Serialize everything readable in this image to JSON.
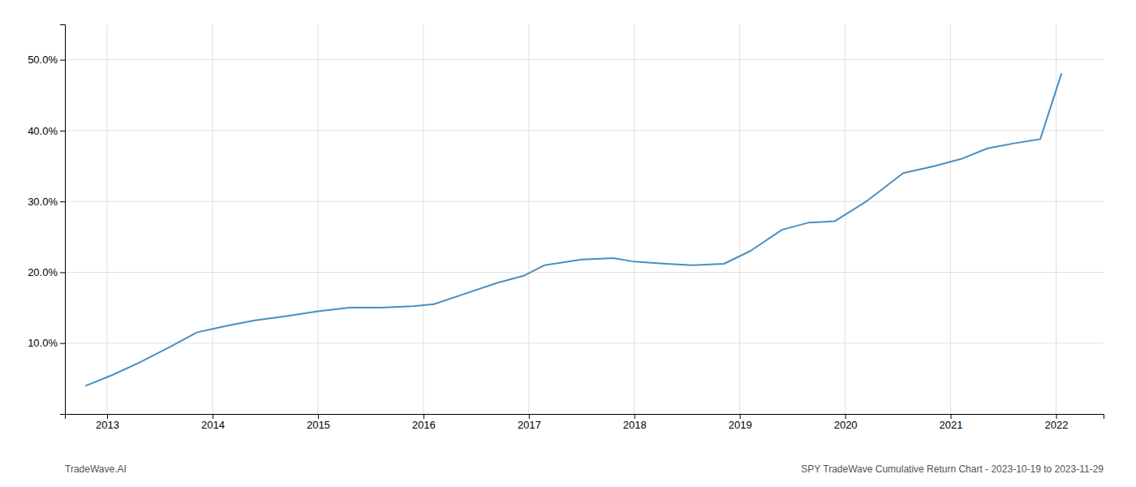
{
  "chart_data": {
    "type": "line",
    "x": [
      2012.8,
      2013.05,
      2013.3,
      2013.6,
      2013.85,
      2014.0,
      2014.15,
      2014.4,
      2014.7,
      2015.0,
      2015.3,
      2015.6,
      2015.9,
      2016.1,
      2016.4,
      2016.7,
      2016.95,
      2017.15,
      2017.5,
      2017.8,
      2018.0,
      2018.3,
      2018.55,
      2018.85,
      2019.1,
      2019.4,
      2019.65,
      2019.9,
      2020.2,
      2020.55,
      2020.85,
      2021.1,
      2021.35,
      2021.6,
      2021.85,
      2022.05
    ],
    "values": [
      4.0,
      5.5,
      7.2,
      9.5,
      11.5,
      12.0,
      12.5,
      13.2,
      13.8,
      14.5,
      15.0,
      15.0,
      15.2,
      15.5,
      17.0,
      18.5,
      19.5,
      21.0,
      21.8,
      22.0,
      21.5,
      21.2,
      21.0,
      21.2,
      23.0,
      26.0,
      27.0,
      27.2,
      30.0,
      34.0,
      35.0,
      36.0,
      37.5,
      38.2,
      38.8,
      48.0
    ],
    "color": "#4a8fc2",
    "xlim": [
      2012.6,
      2022.45
    ],
    "ylim": [
      0,
      55
    ],
    "xticks": [
      2013,
      2014,
      2015,
      2016,
      2017,
      2018,
      2019,
      2020,
      2021,
      2022
    ],
    "yticks": [
      {
        "value": 10.0,
        "label": "10.0%"
      },
      {
        "value": 20.0,
        "label": "20.0%"
      },
      {
        "value": 30.0,
        "label": "30.0%"
      },
      {
        "value": 40.0,
        "label": "40.0%"
      },
      {
        "value": 50.0,
        "label": "50.0%"
      }
    ],
    "grid": true,
    "annotations": [
      "TradeWave.AI",
      "SPY TradeWave Cumulative Return Chart - 2023-10-19 to 2023-11-29"
    ]
  }
}
